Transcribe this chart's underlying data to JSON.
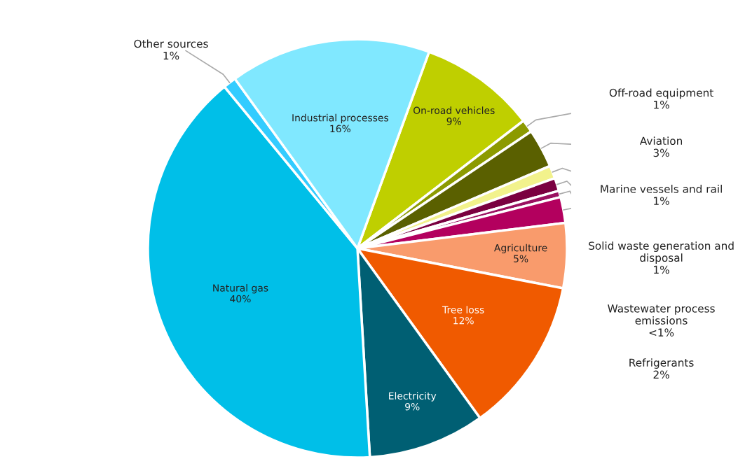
{
  "chart_data": {
    "type": "pie",
    "categories": [
      "On-road vehicles",
      "Off-road equipment",
      "Aviation",
      "Marine vessels and rail",
      "Solid waste generation and\ndisposal",
      "Wastewater process\nemissions",
      "Refrigerants",
      "Agriculture",
      "Tree loss",
      "Electricity",
      "Natural gas",
      "Other sources",
      "Industrial processes"
    ],
    "values": [
      9,
      1,
      3,
      1,
      1,
      0.5,
      2,
      5,
      12,
      9,
      40,
      1,
      15.5
    ],
    "value_labels": [
      "9%",
      "1%",
      "3%",
      "1%",
      "1%",
      "<1%",
      "2%",
      "5%",
      "12%",
      "9%",
      "40%",
      "1%",
      "16%"
    ],
    "colors": [
      "#bfcf00",
      "#8c9a00",
      "#5a6000",
      "#f2f28c",
      "#7a0040",
      "#9a1060",
      "#b3005e",
      "#f99b6c",
      "#f05a00",
      "#005f73",
      "#00bfe8",
      "#33ccff",
      "#80e8ff"
    ],
    "legend": false
  }
}
